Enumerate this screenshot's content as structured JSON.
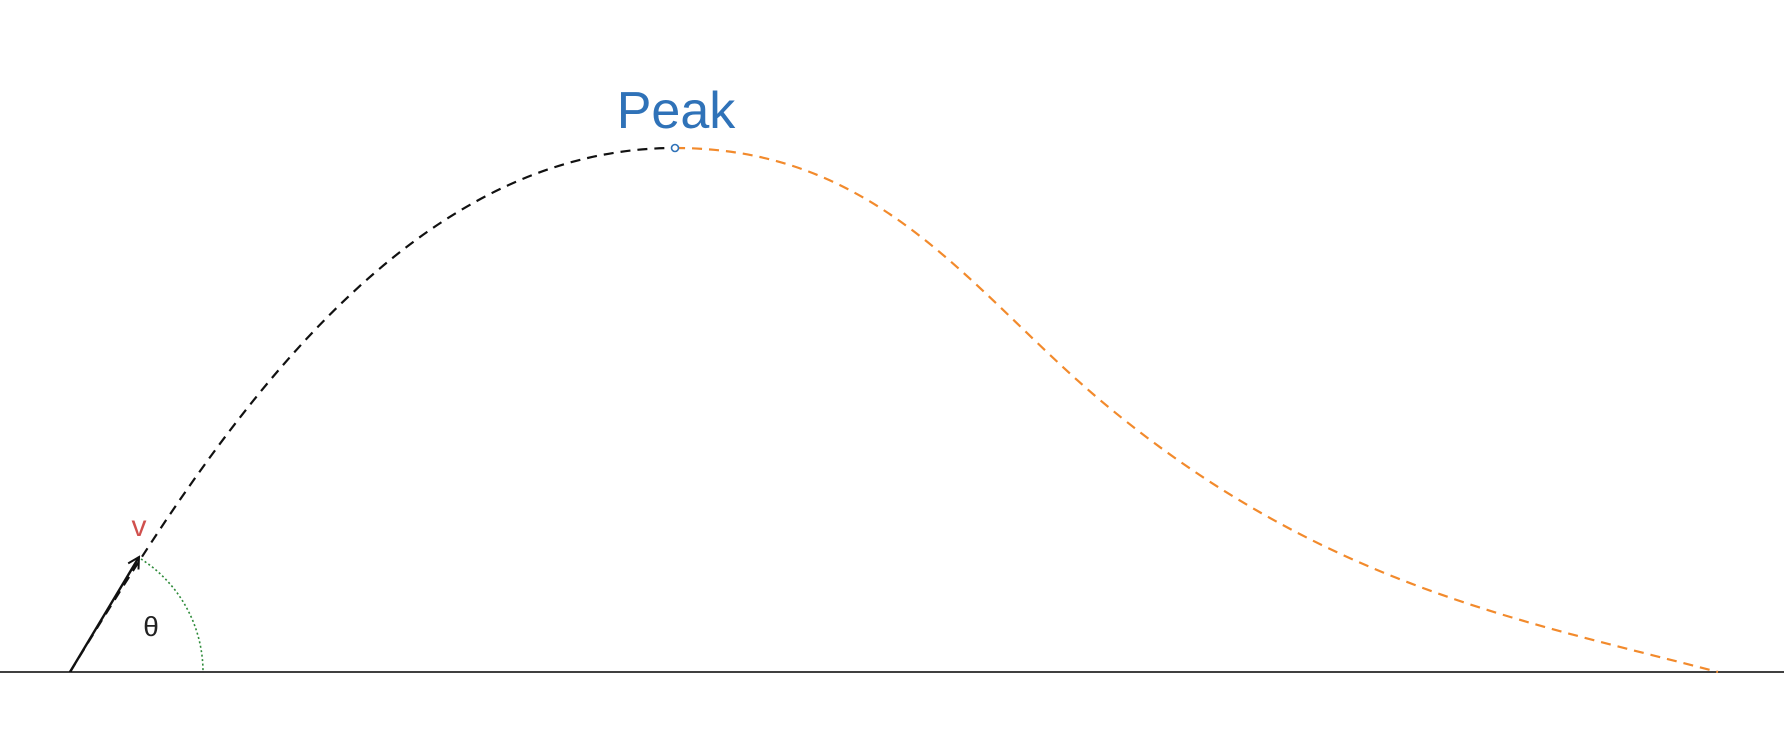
{
  "labels": {
    "peak": "Peak",
    "velocity": "v",
    "angle": "θ"
  },
  "colors": {
    "background": "#ffffff",
    "ground": "#000000",
    "ascent_path": "#111111",
    "descent_path": "#f28a2c",
    "peak_label": "#2f72b8",
    "peak_marker": "#2f72b8",
    "velocity_label": "#d0504d",
    "velocity_vector": "#111111",
    "angle_arc": "#2e8b3a",
    "angle_label": "#222222"
  }
}
